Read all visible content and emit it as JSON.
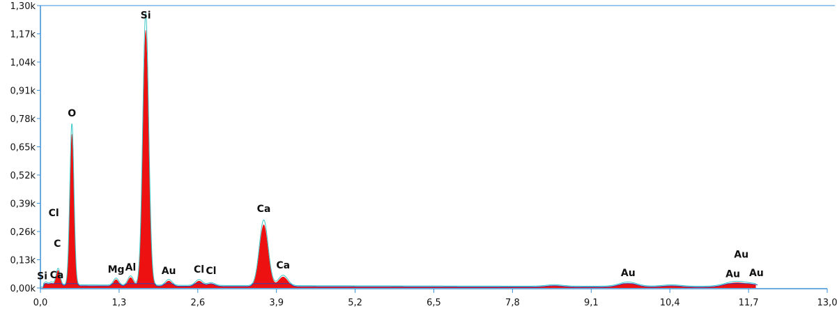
{
  "chart_data": {
    "type": "area",
    "title": "",
    "xlabel": "",
    "ylabel": "",
    "xlim": [
      0.0,
      13.0
    ],
    "ylim": [
      0.0,
      1.3
    ],
    "grid": false,
    "legend": "none",
    "x_ticks": [
      "0,0",
      "1,3",
      "2,6",
      "3,9",
      "5,2",
      "6,5",
      "7,8",
      "9,1",
      "10,4",
      "11,7",
      "13,0"
    ],
    "x_tick_values": [
      0.0,
      1.3,
      2.6,
      3.9,
      5.2,
      6.5,
      7.8,
      9.1,
      10.4,
      11.7,
      13.0
    ],
    "y_ticks": [
      "0,00k",
      "0,13k",
      "0,26k",
      "0,39k",
      "0,52k",
      "0,65k",
      "0,78k",
      "0,91k",
      "1,04k",
      "1,17k",
      "1,30k"
    ],
    "y_tick_values": [
      0.0,
      0.13,
      0.26,
      0.39,
      0.52,
      0.65,
      0.78,
      0.91,
      1.04,
      1.17,
      1.3
    ],
    "peaks": [
      {
        "label": "Si",
        "x": 0.09,
        "y": 0.012,
        "label_x": 0.03,
        "label_y": 0.04
      },
      {
        "label": "Ca",
        "x": 0.3,
        "y": 0.045,
        "label_x": 0.27,
        "label_y": 0.045
      },
      {
        "label": "Cl",
        "x": 0.18,
        "y": 0.012,
        "label_x": 0.22,
        "label_y": 0.33
      },
      {
        "label": "C",
        "x": 0.28,
        "y": 0.03,
        "label_x": 0.28,
        "label_y": 0.19
      },
      {
        "label": "O",
        "x": 0.52,
        "y": 0.7,
        "label_x": 0.52,
        "label_y": 0.79
      },
      {
        "label": "Mg",
        "x": 1.25,
        "y": 0.03,
        "label_x": 1.25,
        "label_y": 0.07
      },
      {
        "label": "Al",
        "x": 1.49,
        "y": 0.04,
        "label_x": 1.49,
        "label_y": 0.08
      },
      {
        "label": "Si",
        "x": 1.74,
        "y": 1.18,
        "label_x": 1.74,
        "label_y": 1.24
      },
      {
        "label": "Au",
        "x": 2.12,
        "y": 0.025,
        "label_x": 2.12,
        "label_y": 0.065
      },
      {
        "label": "Cl",
        "x": 2.62,
        "y": 0.025,
        "label_x": 2.62,
        "label_y": 0.07
      },
      {
        "label": "Cl",
        "x": 2.82,
        "y": 0.012,
        "label_x": 2.82,
        "label_y": 0.065
      },
      {
        "label": "Ca",
        "x": 3.69,
        "y": 0.285,
        "label_x": 3.69,
        "label_y": 0.35
      },
      {
        "label": "Ca",
        "x": 4.01,
        "y": 0.045,
        "label_x": 4.01,
        "label_y": 0.09
      },
      {
        "label": "Au",
        "x": 9.71,
        "y": 0.008,
        "label_x": 9.71,
        "label_y": 0.055
      },
      {
        "label": "Au",
        "x": 11.44,
        "y": 0.008,
        "label_x": 11.44,
        "label_y": 0.05
      },
      {
        "label": "Au",
        "x": 11.58,
        "y": 0.008,
        "label_x": 11.58,
        "label_y": 0.14
      },
      {
        "label": "Au",
        "x": 11.83,
        "y": 0.008,
        "label_x": 11.83,
        "label_y": 0.055
      }
    ],
    "background_peaks": [
      {
        "x": 8.49,
        "y": 0.006
      },
      {
        "x": 9.71,
        "y": 0.01
      },
      {
        "x": 10.43,
        "y": 0.006
      },
      {
        "x": 11.44,
        "y": 0.006
      }
    ],
    "colors": {
      "fill": "#ee1111",
      "outline": "#39c6c6",
      "baseline": "#3040b0",
      "axis": "#3a8fd6"
    }
  }
}
